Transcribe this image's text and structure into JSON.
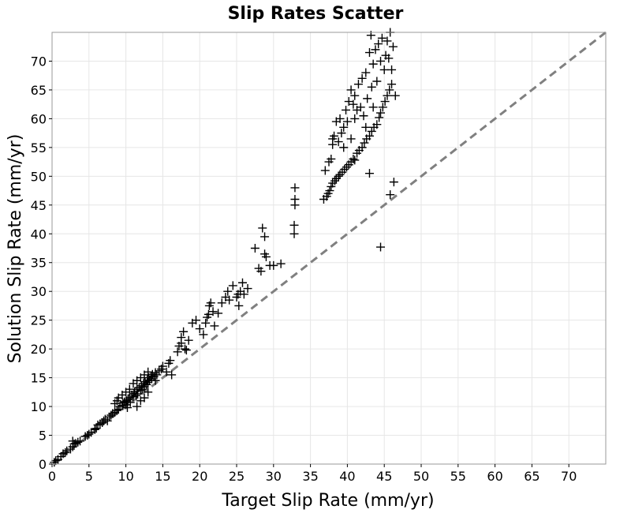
{
  "chart_data": {
    "type": "scatter",
    "title": "Slip Rates Scatter",
    "xlabel": "Target Slip Rate (mm/yr)",
    "ylabel": "Solution Slip Rate (mm/yr)",
    "xlim": [
      0,
      75
    ],
    "ylim": [
      0,
      75
    ],
    "xticks": [
      "0",
      "5",
      "10",
      "15",
      "20",
      "25",
      "30",
      "35",
      "40",
      "45",
      "50",
      "55",
      "60",
      "65",
      "70"
    ],
    "yticks": [
      "0",
      "5",
      "10",
      "15",
      "20",
      "25",
      "30",
      "35",
      "40",
      "45",
      "50",
      "55",
      "60",
      "65",
      "70"
    ],
    "grid": true,
    "marker": "plus",
    "marker_color": "#000000",
    "reference_line": {
      "style": "dashed",
      "color": "#808080",
      "from": [
        0,
        0
      ],
      "to": [
        75,
        75
      ]
    },
    "points": [
      [
        0.3,
        0.3
      ],
      [
        0.5,
        0.6
      ],
      [
        0.8,
        0.8
      ],
      [
        1.2,
        1.3
      ],
      [
        1.5,
        1.8
      ],
      [
        1.8,
        2.0
      ],
      [
        2.0,
        2.3
      ],
      [
        2.5,
        2.6
      ],
      [
        2.8,
        3.0
      ],
      [
        3.0,
        3.5
      ],
      [
        3.2,
        3.6
      ],
      [
        3.5,
        3.8
      ],
      [
        2.8,
        4.0
      ],
      [
        3.8,
        4.0
      ],
      [
        4.5,
        4.8
      ],
      [
        4.8,
        5.0
      ],
      [
        5.0,
        5.2
      ],
      [
        5.3,
        5.5
      ],
      [
        5.8,
        6.0
      ],
      [
        6.0,
        6.2
      ],
      [
        6.2,
        6.8
      ],
      [
        6.5,
        7.0
      ],
      [
        6.8,
        7.2
      ],
      [
        7.0,
        7.5
      ],
      [
        7.2,
        7.8
      ],
      [
        7.5,
        7.5
      ],
      [
        7.8,
        8.2
      ],
      [
        8.0,
        8.5
      ],
      [
        8.2,
        8.8
      ],
      [
        8.5,
        9.0
      ],
      [
        8.8,
        9.3
      ],
      [
        9.0,
        9.5
      ],
      [
        9.2,
        10.0
      ],
      [
        9.5,
        10.2
      ],
      [
        9.6,
        10.6
      ],
      [
        9.8,
        10.8
      ],
      [
        10.0,
        10.3
      ],
      [
        10.1,
        11.0
      ],
      [
        10.3,
        11.2
      ],
      [
        10.5,
        11.5
      ],
      [
        10.6,
        10.7
      ],
      [
        10.8,
        12.0
      ],
      [
        11.0,
        11.7
      ],
      [
        11.1,
        12.3
      ],
      [
        11.2,
        12.6
      ],
      [
        11.4,
        11.9
      ],
      [
        11.5,
        13.0
      ],
      [
        11.6,
        12.2
      ],
      [
        11.8,
        13.3
      ],
      [
        12.0,
        12.8
      ],
      [
        12.1,
        13.6
      ],
      [
        12.2,
        13.0
      ],
      [
        12.4,
        14.0
      ],
      [
        12.5,
        13.4
      ],
      [
        12.6,
        14.3
      ],
      [
        12.8,
        13.8
      ],
      [
        12.9,
        14.6
      ],
      [
        13.0,
        14.2
      ],
      [
        13.1,
        15.0
      ],
      [
        13.2,
        14.5
      ],
      [
        13.4,
        15.3
      ],
      [
        13.5,
        14.8
      ],
      [
        13.6,
        15.6
      ],
      [
        13.8,
        15.2
      ],
      [
        14.0,
        15.9
      ],
      [
        14.2,
        15.5
      ],
      [
        14.5,
        16.2
      ],
      [
        14.8,
        16.5
      ],
      [
        15.0,
        17.0
      ],
      [
        10.0,
        12.5
      ],
      [
        10.5,
        13.0
      ],
      [
        11.0,
        14.0
      ],
      [
        11.5,
        14.5
      ],
      [
        12.0,
        15.0
      ],
      [
        12.5,
        15.5
      ],
      [
        13.0,
        16.0
      ],
      [
        9.0,
        11.5
      ],
      [
        9.5,
        12.0
      ],
      [
        8.5,
        10.5
      ],
      [
        8.8,
        11.0
      ],
      [
        11.5,
        10.0
      ],
      [
        12.0,
        11.0
      ],
      [
        12.5,
        11.5
      ],
      [
        13.0,
        12.5
      ],
      [
        10.2,
        9.8
      ],
      [
        14.0,
        14.5
      ],
      [
        15.5,
        16.0
      ],
      [
        15.8,
        17.5
      ],
      [
        16.0,
        18.0
      ],
      [
        16.2,
        15.5
      ],
      [
        17.0,
        19.5
      ],
      [
        17.2,
        20.5
      ],
      [
        17.5,
        21.0
      ],
      [
        17.5,
        22.0
      ],
      [
        17.8,
        23.0
      ],
      [
        18.0,
        20.0
      ],
      [
        18.2,
        19.8
      ],
      [
        18.5,
        21.5
      ],
      [
        19.0,
        24.5
      ],
      [
        19.5,
        25.0
      ],
      [
        20.0,
        23.5
      ],
      [
        20.5,
        22.5
      ],
      [
        20.8,
        24.5
      ],
      [
        21.0,
        25.5
      ],
      [
        21.2,
        26.0
      ],
      [
        21.3,
        27.5
      ],
      [
        21.5,
        28.0
      ],
      [
        21.8,
        26.5
      ],
      [
        22.0,
        24.0
      ],
      [
        22.5,
        26.2
      ],
      [
        23.0,
        28.0
      ],
      [
        23.5,
        29.0
      ],
      [
        23.8,
        30.0
      ],
      [
        24.0,
        28.5
      ],
      [
        24.5,
        31.0
      ],
      [
        25.0,
        29.0
      ],
      [
        25.2,
        29.5
      ],
      [
        25.5,
        30.0
      ],
      [
        25.8,
        31.5
      ],
      [
        25.3,
        27.5
      ],
      [
        26.0,
        29.5
      ],
      [
        26.5,
        30.5
      ],
      [
        27.5,
        37.5
      ],
      [
        28.0,
        34.0
      ],
      [
        28.3,
        33.5
      ],
      [
        28.5,
        41.0
      ],
      [
        28.8,
        36.5
      ],
      [
        28.8,
        39.5
      ],
      [
        29.0,
        36.0
      ],
      [
        29.5,
        34.5
      ],
      [
        30.0,
        34.5
      ],
      [
        31.0,
        34.8
      ],
      [
        32.8,
        40.0
      ],
      [
        32.8,
        41.5
      ],
      [
        32.9,
        45.0
      ],
      [
        32.9,
        46.0
      ],
      [
        32.9,
        48.0
      ],
      [
        36.8,
        46.0
      ],
      [
        37.2,
        46.5
      ],
      [
        37.4,
        47.0
      ],
      [
        37.6,
        47.5
      ],
      [
        37.8,
        48.2
      ],
      [
        38.0,
        48.8
      ],
      [
        38.3,
        49.2
      ],
      [
        38.5,
        49.6
      ],
      [
        38.8,
        50.0
      ],
      [
        39.0,
        50.3
      ],
      [
        39.3,
        50.7
      ],
      [
        39.6,
        51.2
      ],
      [
        39.9,
        51.6
      ],
      [
        40.2,
        52.0
      ],
      [
        40.5,
        52.5
      ],
      [
        40.8,
        53.0
      ],
      [
        41.0,
        52.8
      ],
      [
        41.3,
        54.0
      ],
      [
        41.6,
        54.5
      ],
      [
        42.0,
        55.0
      ],
      [
        42.3,
        55.8
      ],
      [
        42.6,
        56.5
      ],
      [
        43.0,
        57.0
      ],
      [
        43.3,
        57.8
      ],
      [
        43.6,
        58.5
      ],
      [
        44.0,
        59.0
      ],
      [
        44.3,
        60.2
      ],
      [
        44.5,
        61.0
      ],
      [
        44.8,
        62.0
      ],
      [
        45.1,
        63.0
      ],
      [
        45.4,
        64.0
      ],
      [
        45.7,
        65.0
      ],
      [
        46.0,
        66.0
      ],
      [
        37.0,
        51.0
      ],
      [
        37.5,
        52.5
      ],
      [
        37.8,
        53.0
      ],
      [
        38.0,
        56.5
      ],
      [
        38.2,
        57.0
      ],
      [
        38.5,
        59.5
      ],
      [
        38.8,
        56.0
      ],
      [
        39.0,
        60.0
      ],
      [
        39.2,
        57.5
      ],
      [
        39.5,
        58.5
      ],
      [
        39.8,
        61.5
      ],
      [
        40.0,
        59.5
      ],
      [
        40.2,
        63.0
      ],
      [
        40.5,
        65.0
      ],
      [
        40.8,
        62.5
      ],
      [
        41.0,
        64.0
      ],
      [
        41.3,
        61.5
      ],
      [
        41.5,
        66.0
      ],
      [
        41.8,
        62.0
      ],
      [
        42.0,
        67.0
      ],
      [
        42.2,
        60.5
      ],
      [
        42.5,
        68.0
      ],
      [
        42.7,
        63.5
      ],
      [
        43.0,
        71.5
      ],
      [
        43.2,
        74.5
      ],
      [
        43.3,
        65.5
      ],
      [
        43.5,
        69.5
      ],
      [
        43.8,
        72.0
      ],
      [
        44.0,
        66.5
      ],
      [
        44.2,
        73.0
      ],
      [
        44.5,
        70.0
      ],
      [
        44.7,
        74.0
      ],
      [
        45.0,
        68.5
      ],
      [
        45.2,
        71.0
      ],
      [
        45.4,
        73.5
      ],
      [
        45.6,
        70.5
      ],
      [
        45.8,
        75.0
      ],
      [
        46.0,
        68.5
      ],
      [
        46.2,
        72.5
      ],
      [
        46.5,
        64.0
      ],
      [
        43.0,
        50.5
      ],
      [
        44.5,
        37.7
      ],
      [
        45.8,
        46.8
      ],
      [
        46.3,
        49.0
      ],
      [
        38.0,
        55.5
      ],
      [
        39.5,
        55.0
      ],
      [
        40.5,
        56.5
      ],
      [
        41.0,
        60.0
      ],
      [
        42.5,
        58.5
      ],
      [
        43.5,
        62.0
      ]
    ]
  }
}
